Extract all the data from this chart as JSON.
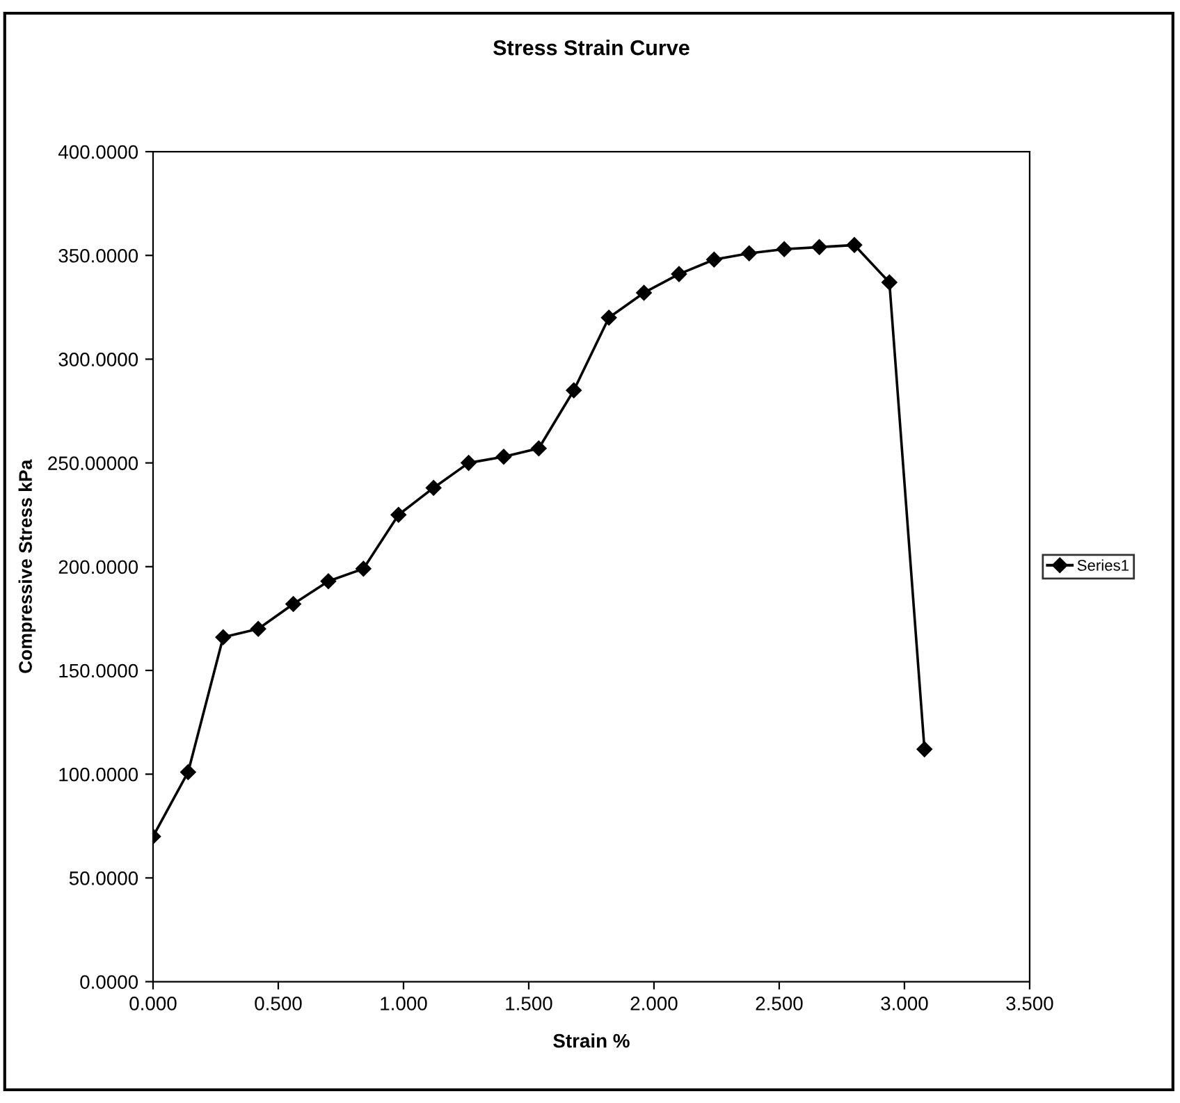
{
  "chart_data": {
    "type": "line",
    "title": "Stress Strain Curve",
    "xlabel": "Strain %",
    "ylabel": "Compressive Stress kPa",
    "x": [
      0.0,
      0.14,
      0.28,
      0.42,
      0.56,
      0.7,
      0.84,
      0.98,
      1.12,
      1.26,
      1.4,
      1.54,
      1.68,
      1.82,
      1.96,
      2.1,
      2.24,
      2.38,
      2.52,
      2.66,
      2.8,
      2.94,
      3.08
    ],
    "series": [
      {
        "name": "Series1",
        "color": "#000000",
        "values": [
          70,
          101,
          166,
          170,
          182,
          193,
          199,
          225,
          238,
          250,
          253,
          257,
          285,
          320,
          332,
          341,
          348,
          351,
          353,
          354,
          355,
          337,
          112
        ]
      }
    ],
    "xlim": [
      0,
      3.5
    ],
    "xticks": [
      {
        "value": 0,
        "label": "0.000"
      },
      {
        "value": 0.5,
        "label": "0.500"
      },
      {
        "value": 1,
        "label": "1.000"
      },
      {
        "value": 1.5,
        "label": "1.500"
      },
      {
        "value": 2,
        "label": "2.000"
      },
      {
        "value": 2.5,
        "label": "2.500"
      },
      {
        "value": 3,
        "label": "3.000"
      },
      {
        "value": 3.5,
        "label": "3.500"
      }
    ],
    "ylim": [
      0,
      400
    ],
    "yticks": [
      {
        "value": 0,
        "label": "0.0000"
      },
      {
        "value": 50,
        "label": "50.0000"
      },
      {
        "value": 100,
        "label": "100.0000"
      },
      {
        "value": 150,
        "label": "150.0000"
      },
      {
        "value": 200,
        "label": "200.0000"
      },
      {
        "value": 250,
        "label": "250.00000"
      },
      {
        "value": 300,
        "label": "300.0000"
      },
      {
        "value": 350,
        "label": "350.0000"
      },
      {
        "value": 400,
        "label": "400.0000"
      }
    ],
    "grid": false,
    "legend": "right",
    "marker": "diamond",
    "line_style": "solid"
  }
}
